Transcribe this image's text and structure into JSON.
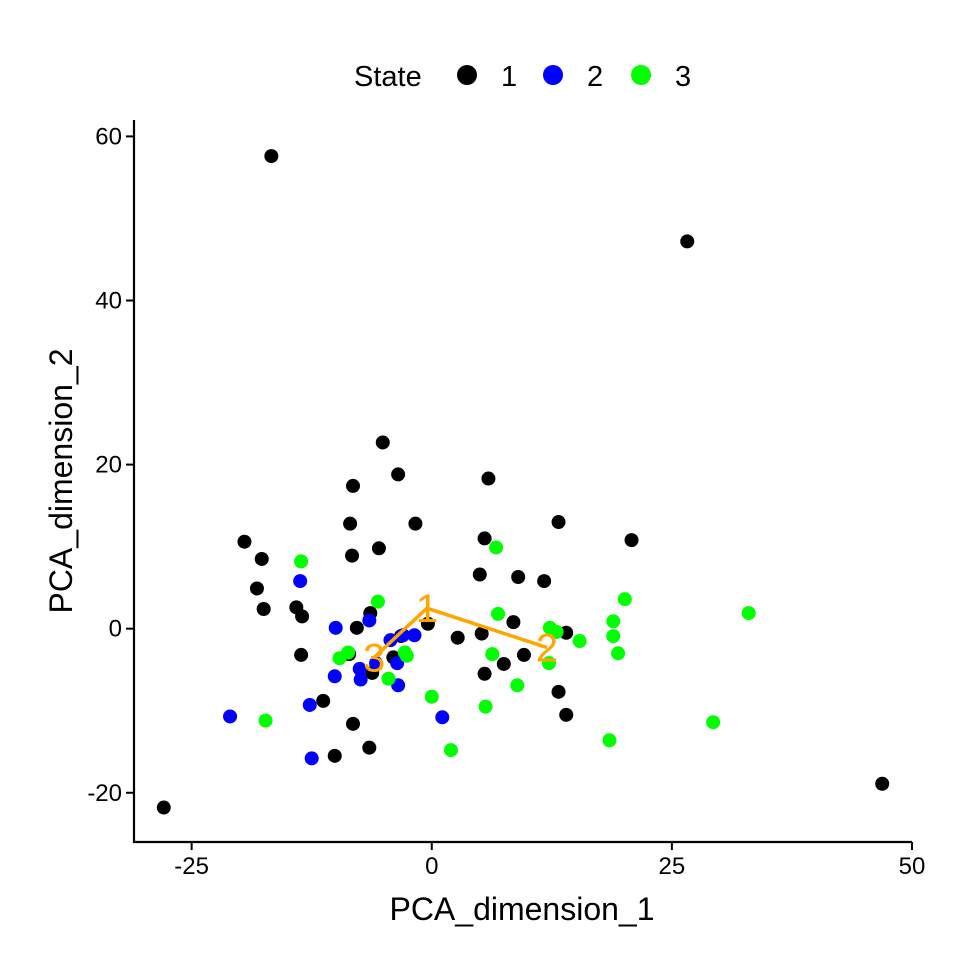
{
  "chart_data": {
    "type": "scatter",
    "xlabel": "PCA_dimension_1",
    "ylabel": "PCA_dimension_2",
    "xlim": [
      -31,
      50
    ],
    "ylim": [
      -26,
      62
    ],
    "xticks": [
      -25,
      0,
      25,
      50
    ],
    "yticks": [
      -20,
      0,
      20,
      40,
      60
    ],
    "xtick_labels": [
      "-25",
      "0",
      "25",
      "50"
    ],
    "ytick_labels": [
      "-20",
      "0",
      "20",
      "40",
      "60"
    ],
    "grid": false,
    "legend": {
      "title": "State",
      "placement": "top"
    },
    "series": [
      {
        "name": "1",
        "color": "#000000",
        "points": [
          [
            -16.7,
            57.6
          ],
          [
            26.6,
            47.2
          ],
          [
            -5.1,
            22.7
          ],
          [
            -3.5,
            18.8
          ],
          [
            -8.2,
            17.4
          ],
          [
            5.9,
            18.3
          ],
          [
            -8.5,
            12.8
          ],
          [
            -1.7,
            12.8
          ],
          [
            13.2,
            13.0
          ],
          [
            -19.5,
            10.6
          ],
          [
            -17.7,
            8.5
          ],
          [
            -8.3,
            8.9
          ],
          [
            -5.5,
            9.8
          ],
          [
            5.5,
            11.0
          ],
          [
            20.8,
            10.8
          ],
          [
            -18.2,
            4.9
          ],
          [
            5.0,
            6.6
          ],
          [
            9.0,
            6.3
          ],
          [
            11.7,
            5.8
          ],
          [
            -17.5,
            2.4
          ],
          [
            -14.1,
            2.6
          ],
          [
            -13.5,
            1.5
          ],
          [
            -6.4,
            1.9
          ],
          [
            -0.4,
            0.6
          ],
          [
            8.5,
            0.8
          ],
          [
            -7.8,
            0.1
          ],
          [
            5.2,
            -0.6
          ],
          [
            14.0,
            -0.5
          ],
          [
            2.7,
            -1.1
          ],
          [
            -3.2,
            -0.9
          ],
          [
            -13.6,
            -3.2
          ],
          [
            -8.6,
            -3.1
          ],
          [
            -4.0,
            -3.5
          ],
          [
            9.6,
            -3.2
          ],
          [
            7.5,
            -4.3
          ],
          [
            -6.2,
            -5.4
          ],
          [
            5.5,
            -5.5
          ],
          [
            -11.3,
            -8.8
          ],
          [
            13.2,
            -7.7
          ],
          [
            14.0,
            -10.5
          ],
          [
            -8.2,
            -11.6
          ],
          [
            -6.5,
            -14.5
          ],
          [
            -10.1,
            -15.5
          ],
          [
            -27.9,
            -21.8
          ],
          [
            46.9,
            -18.9
          ]
        ]
      },
      {
        "name": "2",
        "color": "#0000FF",
        "points": [
          [
            -13.7,
            5.8
          ],
          [
            -10.0,
            0.1
          ],
          [
            -6.5,
            1.0
          ],
          [
            -3.0,
            -0.8
          ],
          [
            -4.3,
            -1.4
          ],
          [
            -1.8,
            -0.8
          ],
          [
            -5.8,
            -4.2
          ],
          [
            -7.5,
            -4.9
          ],
          [
            -3.6,
            -4.2
          ],
          [
            -10.1,
            -5.8
          ],
          [
            -7.4,
            -6.2
          ],
          [
            -3.5,
            -6.9
          ],
          [
            -12.7,
            -9.3
          ],
          [
            -21.0,
            -10.7
          ],
          [
            1.1,
            -10.8
          ],
          [
            -12.5,
            -15.8
          ]
        ]
      },
      {
        "name": "3",
        "color": "#00FF00",
        "points": [
          [
            -13.6,
            8.2
          ],
          [
            6.7,
            9.9
          ],
          [
            -5.6,
            3.3
          ],
          [
            20.1,
            3.6
          ],
          [
            33.0,
            1.9
          ],
          [
            6.9,
            1.8
          ],
          [
            18.9,
            0.9
          ],
          [
            12.3,
            0.1
          ],
          [
            13.0,
            -0.4
          ],
          [
            18.9,
            -0.9
          ],
          [
            15.4,
            -1.5
          ],
          [
            -2.6,
            -3.3
          ],
          [
            -8.7,
            -2.9
          ],
          [
            -9.6,
            -3.6
          ],
          [
            -2.8,
            -2.9
          ],
          [
            6.3,
            -3.1
          ],
          [
            19.4,
            -3.0
          ],
          [
            12.2,
            -4.2
          ],
          [
            -4.5,
            -6.1
          ],
          [
            8.9,
            -6.9
          ],
          [
            0.0,
            -8.3
          ],
          [
            5.6,
            -9.5
          ],
          [
            29.3,
            -11.4
          ],
          [
            -17.3,
            -11.2
          ],
          [
            2.0,
            -14.8
          ],
          [
            18.5,
            -13.6
          ]
        ]
      }
    ],
    "trajectory": {
      "color": "#FFA500",
      "path": [
        [
          -6.0,
          -3.5
        ],
        [
          -0.5,
          2.5
        ],
        [
          12.0,
          -2.3
        ]
      ],
      "labels": [
        {
          "text": "1",
          "x": -0.5,
          "y": 2.5
        },
        {
          "text": "2",
          "x": 12.0,
          "y": -2.3
        },
        {
          "text": "3",
          "x": -6.0,
          "y": -3.5
        }
      ]
    }
  }
}
